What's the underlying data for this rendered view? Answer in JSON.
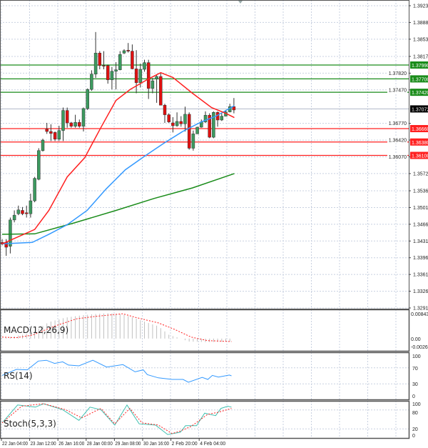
{
  "colors": {
    "bull": "#3c9a5f",
    "bear": "#e01010",
    "ma_fast": "#ff2020",
    "ma_mid": "#3399ff",
    "ma_slow": "#1a8c1a",
    "resistance": "#1a8c1a",
    "support": "#ff2020",
    "current": "#000000",
    "rsi": "#3399ff",
    "stoch_main": "#40c0b0",
    "stoch_signal": "#ff2020",
    "macd_hist": "#c0c0c0",
    "macd_signal": "#ff2020"
  },
  "chart_data": {
    "type": "candlestick",
    "price_range": [
      1.3291,
      1.3923
    ],
    "price_ticks": [
      "1.39230",
      "1.38880",
      "1.38530",
      "1.38170",
      "1.37820",
      "1.37470",
      "1.36770",
      "1.36420",
      "1.36070",
      "1.35720",
      "1.35360",
      "1.35010",
      "1.34660",
      "1.34310",
      "1.33960",
      "1.33610",
      "1.33260",
      "1.32910"
    ],
    "levels": [
      {
        "label": "1.37990",
        "price": 1.3799,
        "type": "resistance"
      },
      {
        "label": "1.37700",
        "price": 1.377,
        "type": "resistance"
      },
      {
        "label": "1.37420",
        "price": 1.3742,
        "type": "resistance"
      },
      {
        "label": "1.36660",
        "price": 1.3666,
        "type": "support"
      },
      {
        "label": "1.36380",
        "price": 1.3638,
        "type": "support"
      },
      {
        "label": "1.36100",
        "price": 1.361,
        "type": "support"
      }
    ],
    "current_price": {
      "label": "1.37072",
      "price": 1.37072
    },
    "candles": [
      [
        1.3428,
        1.3435,
        1.3422,
        1.3425
      ],
      [
        1.3428,
        1.3435,
        1.34,
        1.3418
      ],
      [
        1.342,
        1.348,
        1.3405,
        1.3475
      ],
      [
        1.3475,
        1.3495,
        1.347,
        1.3485
      ],
      [
        1.3488,
        1.3505,
        1.3485,
        1.3496
      ],
      [
        1.3495,
        1.3502,
        1.3485,
        1.3488
      ],
      [
        1.349,
        1.3505,
        1.348,
        1.3488
      ],
      [
        1.3488,
        1.353,
        1.348,
        1.3515
      ],
      [
        1.3515,
        1.3565,
        1.3512,
        1.3562
      ],
      [
        1.356,
        1.3625,
        1.3558,
        1.362
      ],
      [
        1.362,
        1.3645,
        1.3618,
        1.3642
      ],
      [
        1.3665,
        1.3678,
        1.3655,
        1.366
      ],
      [
        1.366,
        1.3675,
        1.364,
        1.3656
      ],
      [
        1.3658,
        1.366,
        1.364,
        1.3644
      ],
      [
        1.3644,
        1.3672,
        1.364,
        1.3662
      ],
      [
        1.3662,
        1.371,
        1.364,
        1.3704
      ],
      [
        1.3704,
        1.371,
        1.3668,
        1.3678
      ],
      [
        1.3678,
        1.368,
        1.3668,
        1.3671
      ],
      [
        1.3671,
        1.3695,
        1.3668,
        1.3679
      ],
      [
        1.3679,
        1.3685,
        1.3668,
        1.3671
      ],
      [
        1.3671,
        1.371,
        1.366,
        1.3708
      ],
      [
        1.3708,
        1.375,
        1.3705,
        1.3748
      ],
      [
        1.3748,
        1.3788,
        1.3745,
        1.378
      ],
      [
        1.378,
        1.3868,
        1.3772,
        1.3824
      ],
      [
        1.3824,
        1.3828,
        1.379,
        1.3798
      ],
      [
        1.3798,
        1.3828,
        1.379,
        1.3797
      ],
      [
        1.3798,
        1.38,
        1.376,
        1.3768
      ],
      [
        1.3768,
        1.3795,
        1.3748,
        1.3786
      ],
      [
        1.3786,
        1.3805,
        1.3748,
        1.3789
      ],
      [
        1.3789,
        1.3828,
        1.3788,
        1.3821
      ],
      [
        1.3824,
        1.3832,
        1.3822,
        1.3829
      ],
      [
        1.383,
        1.3845,
        1.3825,
        1.3828
      ],
      [
        1.3828,
        1.3842,
        1.379,
        1.3791
      ],
      [
        1.3791,
        1.383,
        1.374,
        1.3762
      ],
      [
        1.3762,
        1.3802,
        1.3752,
        1.379
      ],
      [
        1.379,
        1.381,
        1.3785,
        1.3804
      ],
      [
        1.3804,
        1.381,
        1.3728,
        1.375
      ],
      [
        1.375,
        1.3772,
        1.374,
        1.3766
      ],
      [
        1.377,
        1.3778,
        1.372,
        1.3775
      ],
      [
        1.3775,
        1.3782,
        1.3715,
        1.3715
      ],
      [
        1.3715,
        1.3718,
        1.3678,
        1.3695
      ],
      [
        1.3695,
        1.3698,
        1.3678,
        1.368
      ],
      [
        1.3678,
        1.369,
        1.3658,
        1.3672
      ],
      [
        1.3672,
        1.37,
        1.367,
        1.3681
      ],
      [
        1.3681,
        1.3692,
        1.367,
        1.3676
      ],
      [
        1.3676,
        1.3712,
        1.366,
        1.3696
      ],
      [
        1.3696,
        1.37,
        1.3622,
        1.3625
      ],
      [
        1.3625,
        1.3662,
        1.362,
        1.3655
      ],
      [
        1.3655,
        1.367,
        1.3655,
        1.3669
      ],
      [
        1.3669,
        1.3685,
        1.3668,
        1.368
      ],
      [
        1.368,
        1.3702,
        1.3678,
        1.3694
      ],
      [
        1.3694,
        1.3698,
        1.3646,
        1.3648
      ],
      [
        1.3648,
        1.3702,
        1.3646,
        1.37
      ],
      [
        1.37,
        1.3702,
        1.367,
        1.3684
      ],
      [
        1.3684,
        1.3698,
        1.3682,
        1.3692
      ],
      [
        1.3692,
        1.3705,
        1.3692,
        1.3701
      ],
      [
        1.3701,
        1.3718,
        1.37,
        1.3712
      ],
      [
        1.3712,
        1.373,
        1.3698,
        1.3705
      ]
    ],
    "moving_averages": {
      "fast": [
        [
          0,
          1.3425
        ],
        [
          8,
          1.3455
        ],
        [
          11.5,
          1.3495
        ],
        [
          16,
          1.3565
        ],
        [
          20.3,
          1.3605
        ],
        [
          24.4,
          1.367
        ],
        [
          28,
          1.3725
        ],
        [
          31.5,
          1.3748
        ],
        [
          36,
          1.377
        ],
        [
          39,
          1.3783
        ],
        [
          42,
          1.3773
        ],
        [
          46.8,
          1.374
        ],
        [
          51.5,
          1.371
        ],
        [
          55,
          1.3698
        ],
        [
          57.1,
          1.3689
        ]
      ],
      "mid": [
        [
          0,
          1.3425
        ],
        [
          7.4,
          1.3428
        ],
        [
          11.5,
          1.3445
        ],
        [
          16,
          1.3465
        ],
        [
          20.9,
          1.3495
        ],
        [
          25.6,
          1.354
        ],
        [
          30.3,
          1.358
        ],
        [
          35,
          1.3608
        ],
        [
          39.7,
          1.3635
        ],
        [
          44.4,
          1.366
        ],
        [
          49,
          1.368
        ],
        [
          52.6,
          1.3692
        ],
        [
          57.1,
          1.3714
        ]
      ],
      "slow": [
        [
          0,
          1.3445
        ],
        [
          8,
          1.3446
        ],
        [
          17.4,
          1.3468
        ],
        [
          28,
          1.3495
        ],
        [
          37.4,
          1.352
        ],
        [
          46.8,
          1.3542
        ],
        [
          57.1,
          1.3572
        ]
      ]
    },
    "time_labels": [
      "22 Jan 04:00",
      "23 Jan 12:00",
      "26 Jan 16:00",
      "28 Jan 00:00",
      "29 Jan 08:00",
      "30 Jan 16:00",
      "2 Feb 20:00",
      "4 Feb 04:00"
    ],
    "macd": {
      "label": "MACD(12,26,9)",
      "ticks": [
        "0.008432",
        "0.00",
        "-0.002697"
      ],
      "range": [
        -0.002697,
        0.008432
      ],
      "histogram": [
        [
          0,
          0.0001
        ],
        [
          3.5,
          0.0009
        ],
        [
          7.5,
          0.002
        ],
        [
          11.5,
          0.0056
        ],
        [
          15.6,
          0.0071
        ],
        [
          19.6,
          0.0079
        ],
        [
          23.6,
          0.0084
        ],
        [
          26.3,
          0.0086
        ],
        [
          29.7,
          0.0082
        ],
        [
          33,
          0.0067
        ],
        [
          35.7,
          0.0054
        ],
        [
          38.4,
          0.0042
        ],
        [
          41.1,
          0.0012
        ],
        [
          43.8,
          0.0001
        ],
        [
          45.8,
          -0.001
        ],
        [
          50.5,
          -0.0012
        ],
        [
          56.4,
          -0.001
        ]
      ],
      "signal": [
        [
          0,
          0.0005
        ],
        [
          3.5,
          0.0003
        ],
        [
          7.5,
          0.0012
        ],
        [
          12.9,
          0.0042
        ],
        [
          18.3,
          0.0067
        ],
        [
          23.6,
          0.0076
        ],
        [
          29.7,
          0.0084
        ],
        [
          33,
          0.0071
        ],
        [
          38.4,
          0.0053
        ],
        [
          42.4,
          0.0031
        ],
        [
          46.5,
          0.0005
        ],
        [
          50.5,
          -0.0007
        ],
        [
          56.4,
          -0.001
        ]
      ]
    },
    "rsi": {
      "label": "RS(14)",
      "ticks": [
        "100",
        "70",
        "30",
        "0"
      ],
      "values": [
        [
          0,
          51
        ],
        [
          3.5,
          66
        ],
        [
          6.2,
          65
        ],
        [
          8.9,
          87
        ],
        [
          10.9,
          89
        ],
        [
          12.9,
          81
        ],
        [
          14.9,
          85
        ],
        [
          16.3,
          77
        ],
        [
          18.9,
          75
        ],
        [
          22.3,
          89
        ],
        [
          25.7,
          72
        ],
        [
          29.7,
          78
        ],
        [
          32.7,
          60
        ],
        [
          34.7,
          65
        ],
        [
          35.7,
          53
        ],
        [
          38.4,
          45
        ],
        [
          41.8,
          41
        ],
        [
          44.5,
          41
        ],
        [
          45.8,
          34
        ],
        [
          49.2,
          46
        ],
        [
          50.6,
          41
        ],
        [
          51.7,
          51
        ],
        [
          53.2,
          47
        ],
        [
          55.9,
          52
        ],
        [
          56.4,
          50
        ]
      ]
    },
    "stoch": {
      "label": "Stoch(5,3,3)",
      "ticks": [
        "100",
        "80",
        "20",
        "0"
      ],
      "main": [
        [
          0,
          39
        ],
        [
          3.8,
          96
        ],
        [
          8.2,
          89
        ],
        [
          10.2,
          100
        ],
        [
          14.9,
          81
        ],
        [
          18.9,
          47
        ],
        [
          21.6,
          89
        ],
        [
          24.3,
          81
        ],
        [
          27.7,
          32
        ],
        [
          30.7,
          96
        ],
        [
          33.7,
          36
        ],
        [
          37.7,
          32
        ],
        [
          40.7,
          2
        ],
        [
          43.8,
          9
        ],
        [
          45.1,
          30
        ],
        [
          47.8,
          30
        ],
        [
          49.8,
          70
        ],
        [
          52.5,
          62
        ],
        [
          53.8,
          85
        ],
        [
          55.5,
          92
        ],
        [
          56.4,
          89
        ]
      ],
      "signal": [
        [
          0,
          39
        ],
        [
          4.8,
          92
        ],
        [
          10.2,
          100
        ],
        [
          15.6,
          81
        ],
        [
          19.6,
          55
        ],
        [
          24.3,
          85
        ],
        [
          27.7,
          36
        ],
        [
          31.4,
          85
        ],
        [
          34.4,
          39
        ],
        [
          38.4,
          32
        ],
        [
          41.8,
          5
        ],
        [
          43.8,
          13
        ],
        [
          46.5,
          28
        ],
        [
          50.5,
          66
        ],
        [
          53.2,
          73
        ],
        [
          56.4,
          85
        ]
      ]
    }
  }
}
